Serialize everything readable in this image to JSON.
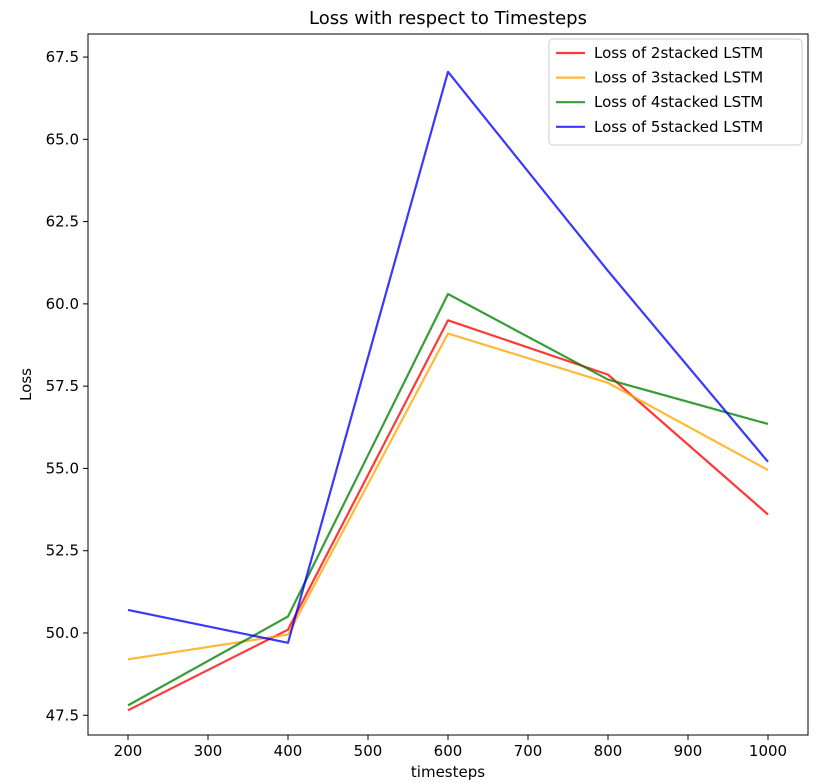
{
  "chart_data": {
    "type": "line",
    "title": "Loss with respect to Timesteps",
    "xlabel": "timesteps",
    "ylabel": "Loss",
    "x": [
      200,
      400,
      600,
      800,
      1000
    ],
    "xlim": [
      150,
      1050
    ],
    "ylim": [
      46.9,
      68.2
    ],
    "xticks": [
      200,
      300,
      400,
      500,
      600,
      700,
      800,
      900,
      1000
    ],
    "yticks": [
      47.5,
      50.0,
      52.5,
      55.0,
      57.5,
      60.0,
      62.5,
      65.0,
      67.5
    ],
    "ytick_labels": [
      "47.5",
      "50.0",
      "52.5",
      "55.0",
      "57.5",
      "60.0",
      "62.5",
      "65.0",
      "67.5"
    ],
    "grid": false,
    "legend_position": "top-right",
    "series": [
      {
        "name": "Loss of 2stacked LSTM",
        "color": "#ff0000",
        "values": [
          47.65,
          50.1,
          59.5,
          57.85,
          53.6
        ]
      },
      {
        "name": "Loss of 3stacked LSTM",
        "color": "#ffa500",
        "values": [
          49.2,
          49.95,
          59.1,
          57.6,
          54.95
        ]
      },
      {
        "name": "Loss of 4stacked LSTM",
        "color": "#008000",
        "values": [
          47.8,
          50.5,
          60.3,
          57.7,
          56.35
        ]
      },
      {
        "name": "Loss of 5stacked LSTM",
        "color": "#0000ff",
        "values": [
          50.7,
          49.7,
          67.05,
          61.0,
          55.2
        ]
      }
    ]
  }
}
